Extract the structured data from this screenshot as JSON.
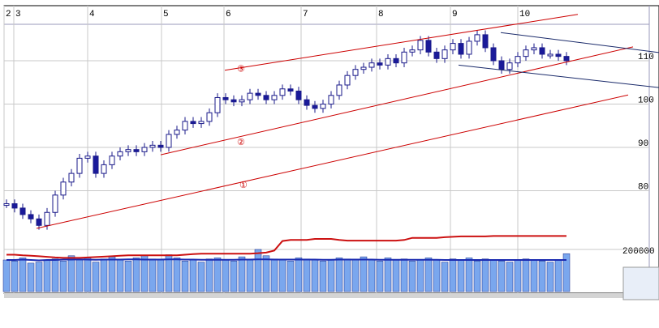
{
  "chart_data": {
    "type": "candlestick",
    "month_ticks": [
      {
        "label": "2",
        "i": -0.3
      },
      {
        "label": "3",
        "i": 0.9
      },
      {
        "label": "4",
        "i": 10
      },
      {
        "label": "5",
        "i": 19.1
      },
      {
        "label": "6",
        "i": 26.8
      },
      {
        "label": "7",
        "i": 36.3
      },
      {
        "label": "8",
        "i": 45.6
      },
      {
        "label": "9",
        "i": 54.7
      },
      {
        "label": "10",
        "i": 63
      }
    ],
    "price_ticks": [
      80,
      90,
      100,
      110
    ],
    "ylim": [
      68,
      120
    ],
    "close": [
      77,
      76,
      74.5,
      73.5,
      72,
      75,
      79,
      82,
      84,
      87.5,
      88,
      84,
      86,
      88,
      89,
      89.5,
      89,
      90,
      90.5,
      90,
      93,
      94,
      96,
      95.5,
      96,
      98,
      101.5,
      101,
      100.5,
      101,
      102.5,
      102,
      101,
      102,
      103.5,
      103,
      101,
      99.7,
      99,
      100,
      102,
      104.4,
      106.6,
      108,
      108.5,
      109.5,
      109,
      110.5,
      109.5,
      112,
      112.5,
      114.7,
      112,
      110.5,
      112.5,
      114,
      111.5,
      114.5,
      116,
      113,
      110,
      108,
      109.5,
      111,
      112.5,
      113,
      111.5,
      111.5,
      111,
      110
    ],
    "volume": [
      150000,
      145000,
      160000,
      135000,
      140000,
      150000,
      155000,
      145000,
      170000,
      150000,
      160000,
      140000,
      155000,
      165000,
      150000,
      145000,
      160000,
      170000,
      155000,
      150000,
      175000,
      160000,
      145000,
      150000,
      140000,
      155000,
      160000,
      150000,
      145000,
      165000,
      150000,
      200000,
      170000,
      155000,
      150000,
      145000,
      160000,
      155000,
      150000,
      145000,
      150000,
      160000,
      155000,
      150000,
      165000,
      150000,
      145000,
      160000,
      150000,
      155000,
      145000,
      150000,
      160000,
      150000,
      140000,
      155000,
      150000,
      160000,
      145000,
      155000,
      150000,
      145000,
      140000,
      150000,
      155000,
      150000,
      145000,
      140000,
      150000,
      180000
    ],
    "volume_ma": [
      150000,
      150000,
      152000,
      150000,
      148000,
      150000,
      150000,
      152000,
      152000,
      153000,
      152000,
      151000,
      152000,
      152000,
      152000,
      153000,
      153000,
      152000,
      152000,
      152000,
      153000,
      153000,
      152000,
      152000,
      151000,
      151000,
      151000,
      151000,
      151000,
      152000,
      152000,
      153000,
      153000,
      152000,
      152000,
      152000,
      152000,
      152000,
      152000,
      151000,
      151000,
      152000,
      152000,
      152000,
      152000,
      152000,
      151000,
      151000,
      151000,
      151000,
      151000,
      151000,
      151000,
      151000,
      150000,
      150000,
      150000,
      150000,
      150000,
      150000,
      150000,
      150000,
      150000,
      150000,
      150000,
      150000,
      150000,
      150000,
      150000,
      150000
    ],
    "volume_ref_line": [
      175000,
      175000,
      172000,
      170000,
      168000,
      165000,
      162000,
      160000,
      160000,
      160000,
      162000,
      164000,
      166000,
      168000,
      170000,
      172000,
      172000,
      172000,
      172000,
      172000,
      172000,
      172000,
      175000,
      178000,
      180000,
      180000,
      180000,
      180000,
      180000,
      180000,
      180000,
      182000,
      185000,
      195000,
      240000,
      245000,
      245000,
      245000,
      250000,
      250000,
      250000,
      245000,
      242000,
      242000,
      242000,
      242000,
      242000,
      242000,
      242000,
      245000,
      255000,
      255000,
      255000,
      255000,
      258000,
      260000,
      262000,
      262000,
      262000,
      262000,
      264000,
      264000,
      264000,
      264000,
      264000,
      264000,
      264000,
      264000,
      264000,
      264000
    ],
    "volume_tick": "200000",
    "trendlines": [
      {
        "label": "①",
        "color": "#cc0000",
        "from": [
          3.7,
          71.3
        ],
        "to": [
          76.6,
          102.1
        ],
        "label_at": [
          29.2,
          81.4
        ]
      },
      {
        "label": "②",
        "color": "#cc0000",
        "from": [
          19,
          88.3
        ],
        "to": [
          77.2,
          113.2
        ],
        "label_at": [
          28.9,
          91.3
        ]
      },
      {
        "label": "③",
        "color": "#cc0000",
        "from": [
          26.9,
          107.8
        ],
        "to": [
          70.4,
          120.7
        ],
        "label_at": [
          28.9,
          108.2
        ]
      },
      {
        "label": "",
        "color": "#1a2a6a",
        "from": [
          60.9,
          116.5
        ],
        "to": [
          80.4,
          111.9
        ]
      },
      {
        "label": "",
        "color": "#1a2a6a",
        "from": [
          55.7,
          109
        ],
        "to": [
          80.4,
          103.8
        ]
      }
    ]
  }
}
